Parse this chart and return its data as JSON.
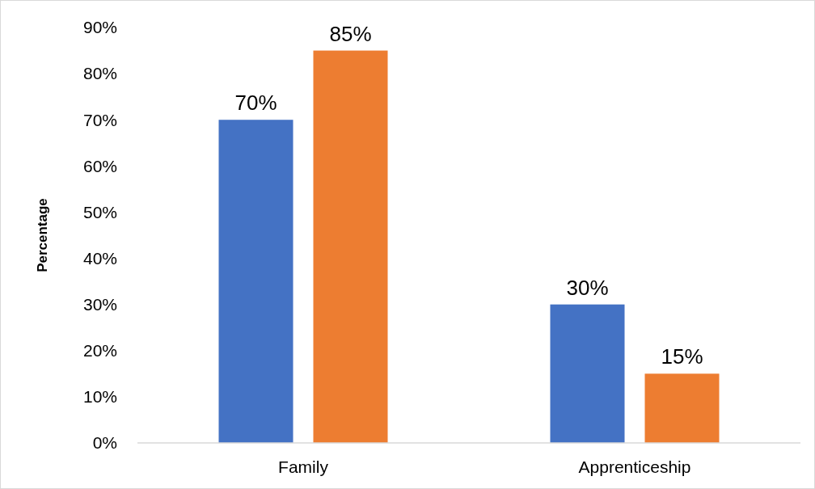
{
  "chart_data": {
    "type": "bar",
    "ylabel": "Percentage",
    "categories": [
      "Family",
      "Apprenticeship"
    ],
    "series": [
      {
        "color": "#4472c4",
        "values": [
          70,
          30
        ],
        "value_labels": [
          "70%",
          "30%"
        ]
      },
      {
        "color": "#ed7d31",
        "values": [
          85,
          15
        ],
        "value_labels": [
          "85%",
          "15%"
        ]
      }
    ],
    "ylim": [
      0,
      90
    ],
    "yticks": [
      {
        "value": 0,
        "label": "0%"
      },
      {
        "value": 10,
        "label": "10%"
      },
      {
        "value": 20,
        "label": "20%"
      },
      {
        "value": 30,
        "label": "30%"
      },
      {
        "value": 40,
        "label": "40%"
      },
      {
        "value": 50,
        "label": "50%"
      },
      {
        "value": 60,
        "label": "60%"
      },
      {
        "value": 70,
        "label": "70%"
      },
      {
        "value": 80,
        "label": "80%"
      },
      {
        "value": 90,
        "label": "90%"
      }
    ],
    "grid": false
  }
}
